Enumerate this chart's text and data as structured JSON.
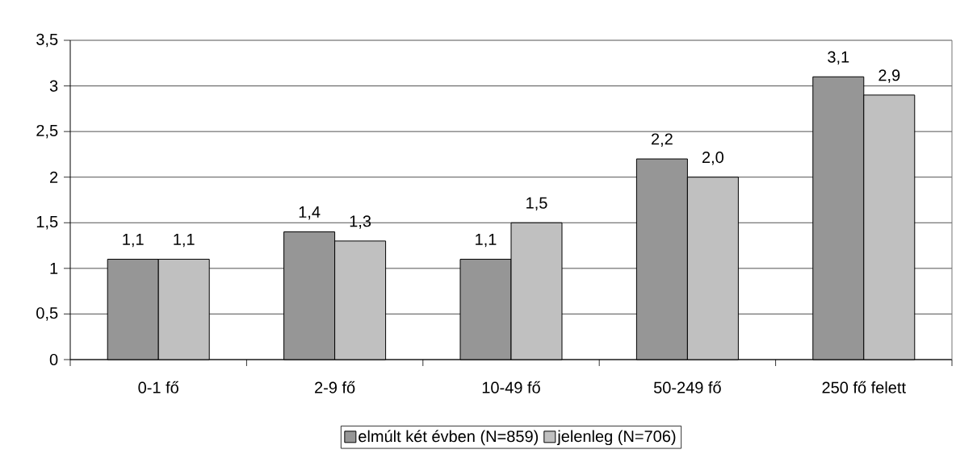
{
  "chart_data": {
    "type": "bar",
    "categories": [
      "0-1 fő",
      "2-9 fő",
      "10-49 fő",
      "50-249 fő",
      "250 fő felett"
    ],
    "series": [
      {
        "name": "elmúlt két évben (N=859)",
        "color": "#969696",
        "values": [
          1.1,
          1.4,
          1.1,
          2.2,
          3.1
        ],
        "value_labels": [
          "1,1",
          "1,4",
          "1,1",
          "2,2",
          "3,1"
        ]
      },
      {
        "name": "jelenleg (N=706)",
        "color": "#c0c0c0",
        "values": [
          1.1,
          1.3,
          1.5,
          2.0,
          2.9
        ],
        "value_labels": [
          "1,1",
          "1,3",
          "1,5",
          "2,0",
          "2,9"
        ]
      }
    ],
    "ylim": [
      0,
      3.5
    ],
    "yticks": [
      0,
      {
        "value": 0.5,
        "label": "0,5"
      },
      1,
      {
        "value": 1.5,
        "label": "1,5"
      },
      2,
      {
        "value": 2.5,
        "label": "2,5"
      },
      3,
      {
        "value": 3.5,
        "label": "3,5"
      }
    ],
    "grid": "y",
    "legend": "bottom"
  }
}
